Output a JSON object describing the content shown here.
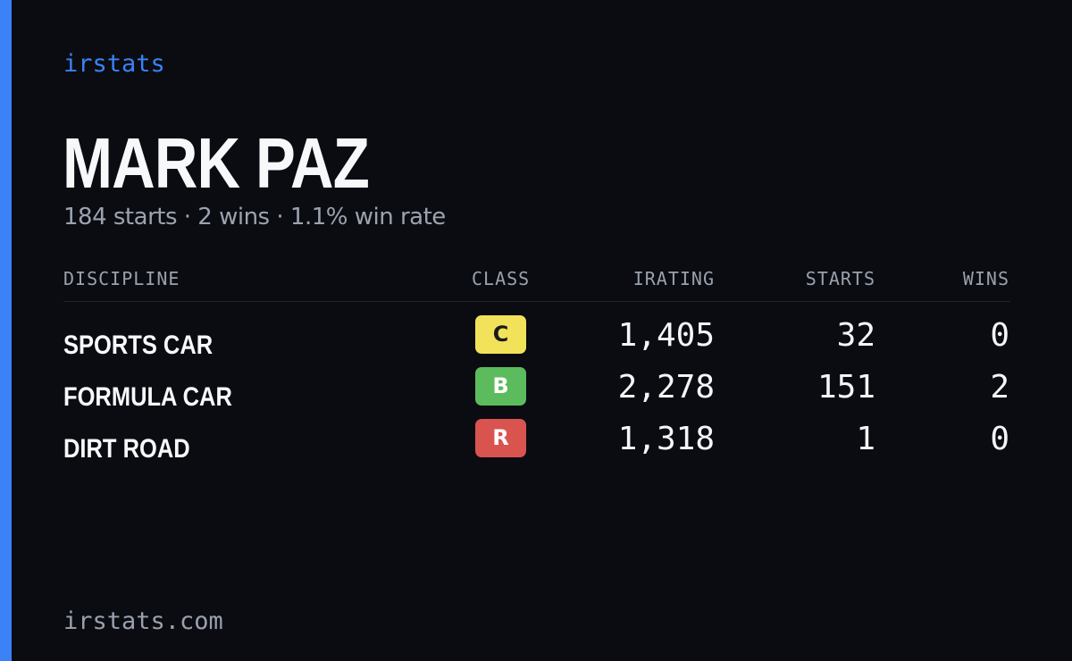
{
  "brand": "irstats",
  "driver": {
    "name": "MARK PAZ",
    "summary": "184 starts · 2 wins · 1.1% win rate"
  },
  "table": {
    "headers": {
      "discipline": "DISCIPLINE",
      "class": "CLASS",
      "irating": "IRATING",
      "starts": "STARTS",
      "wins": "WINS"
    },
    "rows": [
      {
        "discipline": "SPORTS CAR",
        "class": "C",
        "class_bg": "#f2e25a",
        "class_fg": "#1a1a1a",
        "irating": "1,405",
        "starts": "32",
        "wins": "0"
      },
      {
        "discipline": "FORMULA CAR",
        "class": "B",
        "class_bg": "#5cbb5c",
        "class_fg": "#ffffff",
        "irating": "2,278",
        "starts": "151",
        "wins": "2"
      },
      {
        "discipline": "DIRT ROAD",
        "class": "R",
        "class_bg": "#d9534f",
        "class_fg": "#ffffff",
        "irating": "1,318",
        "starts": "1",
        "wins": "0"
      }
    ]
  },
  "footer": "irstats.com",
  "colors": {
    "background": "#0a0c12",
    "accent": "#3b82f6",
    "muted": "#9ca3af"
  }
}
